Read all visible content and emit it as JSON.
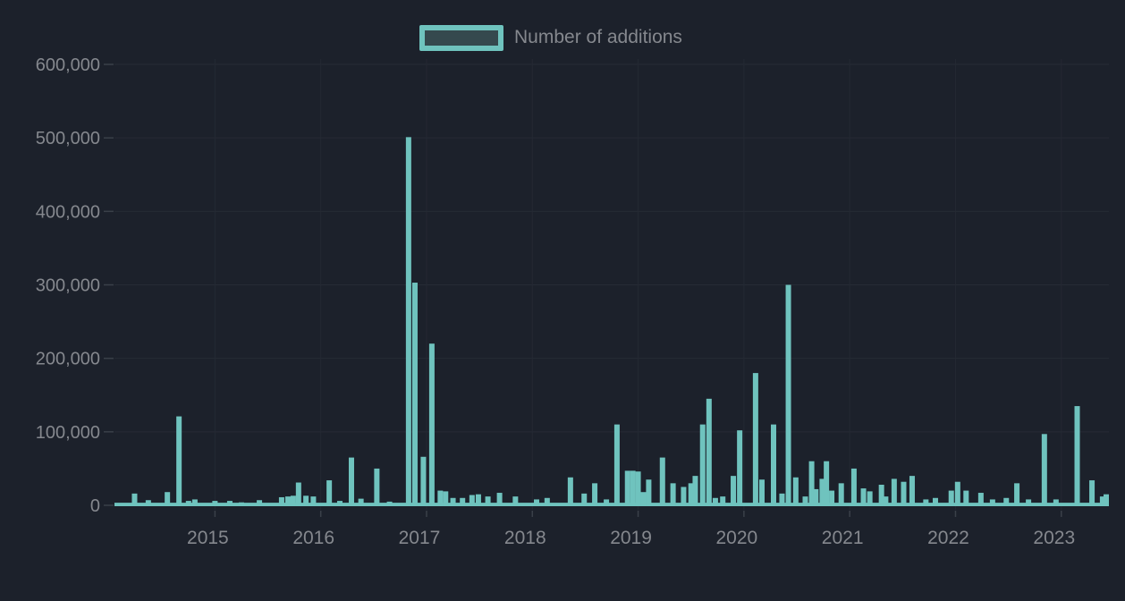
{
  "legend": {
    "label": "Number of additions"
  },
  "colors": {
    "background": "#1c212b",
    "bar": "#6fc3be",
    "legend_fill": "#35494e",
    "grid_h": "#262b35",
    "grid_v": "#242933",
    "tick": "#3a4049",
    "text": "#85888e"
  },
  "chart_data": {
    "type": "bar",
    "title": "",
    "legend": [
      "Number of additions"
    ],
    "xlabel": "",
    "ylabel": "",
    "grid": true,
    "legend_position": "top-center",
    "x_axis": {
      "range": [
        2014.05,
        2023.45
      ],
      "ticks": [
        {
          "value": 2015,
          "label": "2015"
        },
        {
          "value": 2016,
          "label": "2016"
        },
        {
          "value": 2017,
          "label": "2017"
        },
        {
          "value": 2018,
          "label": "2018"
        },
        {
          "value": 2019,
          "label": "2019"
        },
        {
          "value": 2020,
          "label": "2020"
        },
        {
          "value": 2021,
          "label": "2021"
        },
        {
          "value": 2022,
          "label": "2022"
        },
        {
          "value": 2023,
          "label": "2023"
        }
      ]
    },
    "y_axis": {
      "range": [
        0,
        600000
      ],
      "ticks": [
        {
          "value": 0,
          "label": "0"
        },
        {
          "value": 100000,
          "label": "100,000"
        },
        {
          "value": 200000,
          "label": "200,000"
        },
        {
          "value": 300000,
          "label": "300,000"
        },
        {
          "value": 400000,
          "label": "400,000"
        },
        {
          "value": 500000,
          "label": "500,000"
        },
        {
          "value": 600000,
          "label": "600,000"
        }
      ]
    },
    "baseline_weekly_value": 3500,
    "points": [
      [
        2014.24,
        16000
      ],
      [
        2014.37,
        7000
      ],
      [
        2014.55,
        18000
      ],
      [
        2014.66,
        121000
      ],
      [
        2014.75,
        6000
      ],
      [
        2014.81,
        8000
      ],
      [
        2015.0,
        6000
      ],
      [
        2015.14,
        6000
      ],
      [
        2015.25,
        4000
      ],
      [
        2015.42,
        7000
      ],
      [
        2015.63,
        11000
      ],
      [
        2015.69,
        12000
      ],
      [
        2015.74,
        13000
      ],
      [
        2015.79,
        31000
      ],
      [
        2015.86,
        13000
      ],
      [
        2015.93,
        12000
      ],
      [
        2016.08,
        34000
      ],
      [
        2016.18,
        6000
      ],
      [
        2016.29,
        65000
      ],
      [
        2016.38,
        9000
      ],
      [
        2016.53,
        50000
      ],
      [
        2016.65,
        5000
      ],
      [
        2016.83,
        501000
      ],
      [
        2016.89,
        303000
      ],
      [
        2016.97,
        66000
      ],
      [
        2017.05,
        220000
      ],
      [
        2017.13,
        20000
      ],
      [
        2017.18,
        19000
      ],
      [
        2017.25,
        10000
      ],
      [
        2017.34,
        10000
      ],
      [
        2017.43,
        14000
      ],
      [
        2017.49,
        15000
      ],
      [
        2017.58,
        12000
      ],
      [
        2017.69,
        17000
      ],
      [
        2017.84,
        12000
      ],
      [
        2017.96,
        2000
      ],
      [
        2018.04,
        8000
      ],
      [
        2018.14,
        10000
      ],
      [
        2018.36,
        38000
      ],
      [
        2018.49,
        16000
      ],
      [
        2018.59,
        30000
      ],
      [
        2018.7,
        8000
      ],
      [
        2018.8,
        110000
      ],
      [
        2018.9,
        47000
      ],
      [
        2018.95,
        47000
      ],
      [
        2019.0,
        46000
      ],
      [
        2019.05,
        18000
      ],
      [
        2019.1,
        35000
      ],
      [
        2019.23,
        65000
      ],
      [
        2019.33,
        30000
      ],
      [
        2019.43,
        25000
      ],
      [
        2019.5,
        30000
      ],
      [
        2019.54,
        40000
      ],
      [
        2019.61,
        110000
      ],
      [
        2019.67,
        145000
      ],
      [
        2019.73,
        10000
      ],
      [
        2019.8,
        12000
      ],
      [
        2019.9,
        40000
      ],
      [
        2019.96,
        102000
      ],
      [
        2020.11,
        180000
      ],
      [
        2020.17,
        35000
      ],
      [
        2020.28,
        110000
      ],
      [
        2020.36,
        16000
      ],
      [
        2020.42,
        300000
      ],
      [
        2020.49,
        38000
      ],
      [
        2020.58,
        12000
      ],
      [
        2020.64,
        60000
      ],
      [
        2020.68,
        22000
      ],
      [
        2020.74,
        36000
      ],
      [
        2020.78,
        60000
      ],
      [
        2020.83,
        20000
      ],
      [
        2020.92,
        30000
      ],
      [
        2021.04,
        50000
      ],
      [
        2021.13,
        23000
      ],
      [
        2021.19,
        19000
      ],
      [
        2021.3,
        28000
      ],
      [
        2021.34,
        12000
      ],
      [
        2021.42,
        36000
      ],
      [
        2021.51,
        32000
      ],
      [
        2021.59,
        40000
      ],
      [
        2021.72,
        8000
      ],
      [
        2021.81,
        10000
      ],
      [
        2021.96,
        20000
      ],
      [
        2022.02,
        32000
      ],
      [
        2022.1,
        20000
      ],
      [
        2022.24,
        17000
      ],
      [
        2022.35,
        8000
      ],
      [
        2022.48,
        10000
      ],
      [
        2022.58,
        30000
      ],
      [
        2022.69,
        8000
      ],
      [
        2022.84,
        97000
      ],
      [
        2022.95,
        8000
      ],
      [
        2023.15,
        135000
      ],
      [
        2023.29,
        34000
      ],
      [
        2023.39,
        12000
      ],
      [
        2023.45,
        15000
      ]
    ]
  }
}
